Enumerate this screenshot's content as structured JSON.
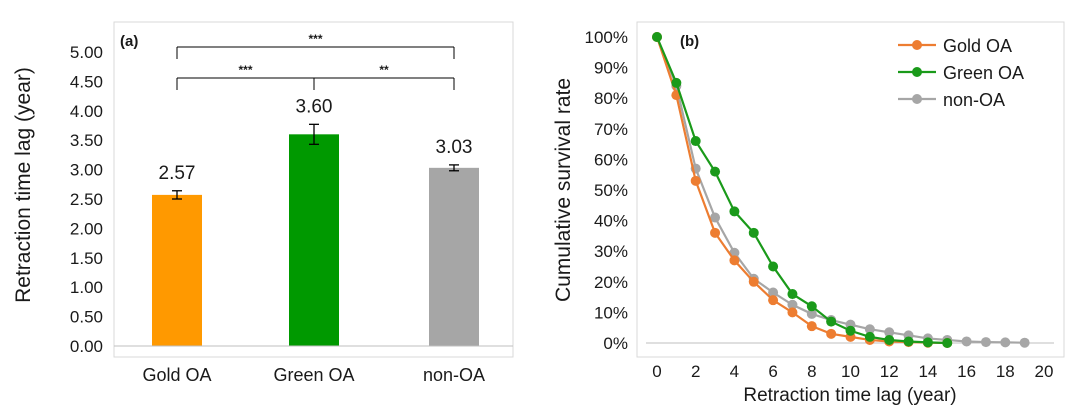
{
  "chart_data": [
    {
      "type": "bar",
      "panel_label": "(a)",
      "categories": [
        "Gold OA",
        "Green OA",
        "non-OA"
      ],
      "values": [
        2.57,
        3.6,
        3.03
      ],
      "value_labels": [
        "2.57",
        "3.60",
        "3.03"
      ],
      "error": [
        0.07,
        0.17,
        0.05
      ],
      "colors": [
        "#ff9900",
        "#009900",
        "#a6a6a6"
      ],
      "ylabel": "Retraction time lag (year)",
      "ylim": [
        0,
        5
      ],
      "yticks": [
        "0.00",
        "0.50",
        "1.00",
        "1.50",
        "2.00",
        "2.50",
        "3.00",
        "3.50",
        "4.00",
        "4.50",
        "5.00"
      ],
      "significance": [
        {
          "from": "Gold OA",
          "to": "non-OA",
          "label": "***",
          "level": 2
        },
        {
          "from": "Gold OA",
          "to": "Green OA",
          "label": "***",
          "level": 1
        },
        {
          "from": "Green OA",
          "to": "non-OA",
          "label": "**",
          "level": 1
        }
      ]
    },
    {
      "type": "line",
      "panel_label": "(b)",
      "xlabel": "Retraction time lag (year)",
      "ylabel": "Cumulative survival rate",
      "xlim": [
        0,
        20
      ],
      "ylim": [
        0,
        100
      ],
      "xticks": [
        "0",
        "2",
        "4",
        "6",
        "8",
        "10",
        "12",
        "14",
        "16",
        "18",
        "20"
      ],
      "yticks": [
        "0%",
        "10%",
        "20%",
        "30%",
        "40%",
        "50%",
        "60%",
        "70%",
        "80%",
        "90%",
        "100%"
      ],
      "legend_position": "top-right",
      "series": [
        {
          "name": "Gold OA",
          "color": "#ed7d31",
          "x": [
            0,
            1,
            2,
            3,
            4,
            5,
            6,
            7,
            8,
            9,
            10,
            11,
            12,
            13,
            14,
            15
          ],
          "y": [
            100,
            81,
            53,
            36,
            27,
            20,
            14,
            10,
            5.5,
            3,
            2,
            1,
            0.5,
            0.3,
            0.1,
            0
          ]
        },
        {
          "name": "Green OA",
          "color": "#1a9a1a",
          "x": [
            0,
            1,
            2,
            3,
            4,
            5,
            6,
            7,
            8,
            9,
            10,
            11,
            12,
            13,
            14,
            15
          ],
          "y": [
            100,
            85,
            66,
            56,
            43,
            36,
            25,
            16,
            12,
            7,
            4,
            2,
            1,
            0.5,
            0.2,
            0
          ]
        },
        {
          "name": "non-OA",
          "color": "#a6a6a6",
          "x": [
            0,
            1,
            2,
            3,
            4,
            5,
            6,
            7,
            8,
            9,
            10,
            11,
            12,
            13,
            14,
            15,
            16,
            17,
            18,
            19
          ],
          "y": [
            100,
            84,
            57,
            41,
            29.5,
            21,
            16.5,
            12.5,
            9.5,
            7.5,
            6,
            4.5,
            3.5,
            2.5,
            1.5,
            1,
            0.5,
            0.3,
            0.2,
            0.1
          ]
        }
      ]
    }
  ]
}
